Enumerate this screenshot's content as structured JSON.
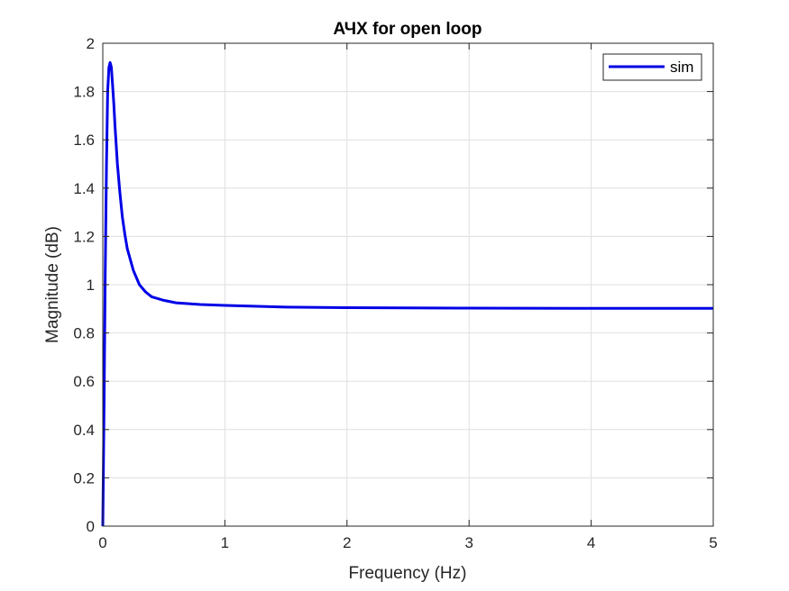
{
  "chart_data": {
    "type": "line",
    "title": "АЧХ for open loop",
    "xlabel": "Frequency (Hz)",
    "ylabel": "Magnitude (dB)",
    "xlim": [
      0,
      5
    ],
    "ylim": [
      0,
      2
    ],
    "xticks": [
      0,
      1,
      2,
      3,
      4,
      5
    ],
    "xtick_labels": [
      "0",
      "1",
      "2",
      "3",
      "4",
      "5"
    ],
    "yticks": [
      0,
      0.2,
      0.4,
      0.6,
      0.8,
      1,
      1.2,
      1.4,
      1.6,
      1.8,
      2
    ],
    "ytick_labels": [
      "0",
      "0.2",
      "0.4",
      "0.6",
      "0.8",
      "1",
      "1.2",
      "1.4",
      "1.6",
      "1.8",
      "2"
    ],
    "grid": true,
    "legend_position": "top-right",
    "series": [
      {
        "name": "sim",
        "color": "#0000e6",
        "x": [
          0,
          0.01,
          0.02,
          0.03,
          0.04,
          0.05,
          0.06,
          0.07,
          0.08,
          0.09,
          0.1,
          0.12,
          0.14,
          0.16,
          0.18,
          0.2,
          0.25,
          0.3,
          0.35,
          0.4,
          0.5,
          0.6,
          0.8,
          1.0,
          1.5,
          2.0,
          3.0,
          4.0,
          5.0
        ],
        "y": [
          0,
          0.5,
          1.05,
          1.5,
          1.8,
          1.9,
          1.92,
          1.9,
          1.83,
          1.75,
          1.66,
          1.5,
          1.38,
          1.28,
          1.21,
          1.15,
          1.06,
          1.0,
          0.97,
          0.95,
          0.935,
          0.925,
          0.918,
          0.914,
          0.907,
          0.905,
          0.903,
          0.902,
          0.902
        ]
      }
    ]
  }
}
